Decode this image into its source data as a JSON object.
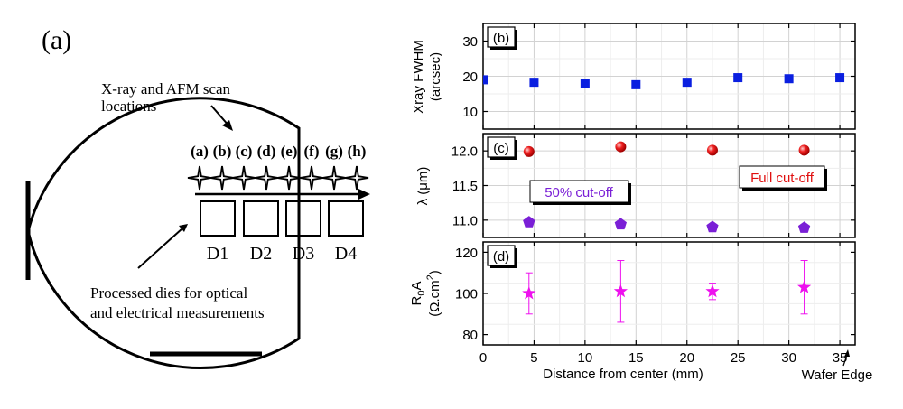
{
  "wafer": {
    "panel_label": "(a)",
    "scan_caption_line1": "X-ray and AFM scan",
    "scan_caption_line2": "locations",
    "point_labels": [
      "(a)",
      "(b)",
      "(c)",
      "(d)",
      "(e)",
      "(f)",
      "(g)",
      "(h)"
    ],
    "die_labels": [
      "D1",
      "D2",
      "D3",
      "D4"
    ],
    "dies_caption_line1": "Processed dies for optical",
    "dies_caption_line2": "and electrical measurements"
  },
  "chart_data": [
    {
      "type": "scatter",
      "panel_label": "(b)",
      "ylabel_line1": "Xray FWHM",
      "ylabel_line2": "(arcsec)",
      "ylim": [
        5,
        35
      ],
      "yticks": [
        10,
        20,
        30
      ],
      "xlim": [
        0,
        36.5
      ],
      "grid": true,
      "series": [
        {
          "marker": "square",
          "color": "#0a1fe0",
          "x": [
            0,
            5,
            10,
            15,
            20,
            25,
            30,
            35
          ],
          "y": [
            19.0,
            18.3,
            18.0,
            17.6,
            18.3,
            19.6,
            19.3,
            19.6
          ]
        }
      ]
    },
    {
      "type": "scatter",
      "panel_label": "(c)",
      "ylabel": "λ (μm)",
      "ylim": [
        10.75,
        12.25
      ],
      "yticks": [
        "11.0",
        "11.5",
        "12.0"
      ],
      "xlim": [
        0,
        36.5
      ],
      "grid": true,
      "annotations": [
        "50% cut-off",
        "Full cut-off"
      ],
      "series": [
        {
          "name": "Full cut-off",
          "marker": "sphere",
          "color": "#e01010",
          "x": [
            4.5,
            13.5,
            22.5,
            31.5
          ],
          "y": [
            11.99,
            12.06,
            12.01,
            12.01
          ]
        },
        {
          "name": "50% cut-off",
          "marker": "pentagon",
          "color": "#7a1fd6",
          "x": [
            4.5,
            13.5,
            22.5,
            31.5
          ],
          "y": [
            10.97,
            10.94,
            10.9,
            10.89
          ]
        }
      ]
    },
    {
      "type": "scatter",
      "panel_label": "(d)",
      "ylabel_main": "R",
      "ylabel_sub": "0",
      "ylabel_tail": "A",
      "yunit_main": "(Ω.cm",
      "yunit_sup": "2",
      "yunit_tail": ")",
      "ylim": [
        75,
        125
      ],
      "yticks": [
        80,
        100,
        120
      ],
      "xlim": [
        0,
        36.5
      ],
      "xticks": [
        0,
        5,
        10,
        15,
        20,
        25,
        30,
        35
      ],
      "xlabel": "Distance from center (mm)",
      "edge_label": "Wafer Edge",
      "grid": true,
      "series": [
        {
          "marker": "star",
          "color": "#ee10ee",
          "x": [
            4.5,
            13.5,
            22.5,
            31.5
          ],
          "y": [
            100,
            101,
            101,
            103
          ],
          "err_low": [
            10,
            15,
            4,
            13
          ],
          "err_high": [
            10,
            15,
            4,
            13
          ]
        }
      ]
    }
  ]
}
